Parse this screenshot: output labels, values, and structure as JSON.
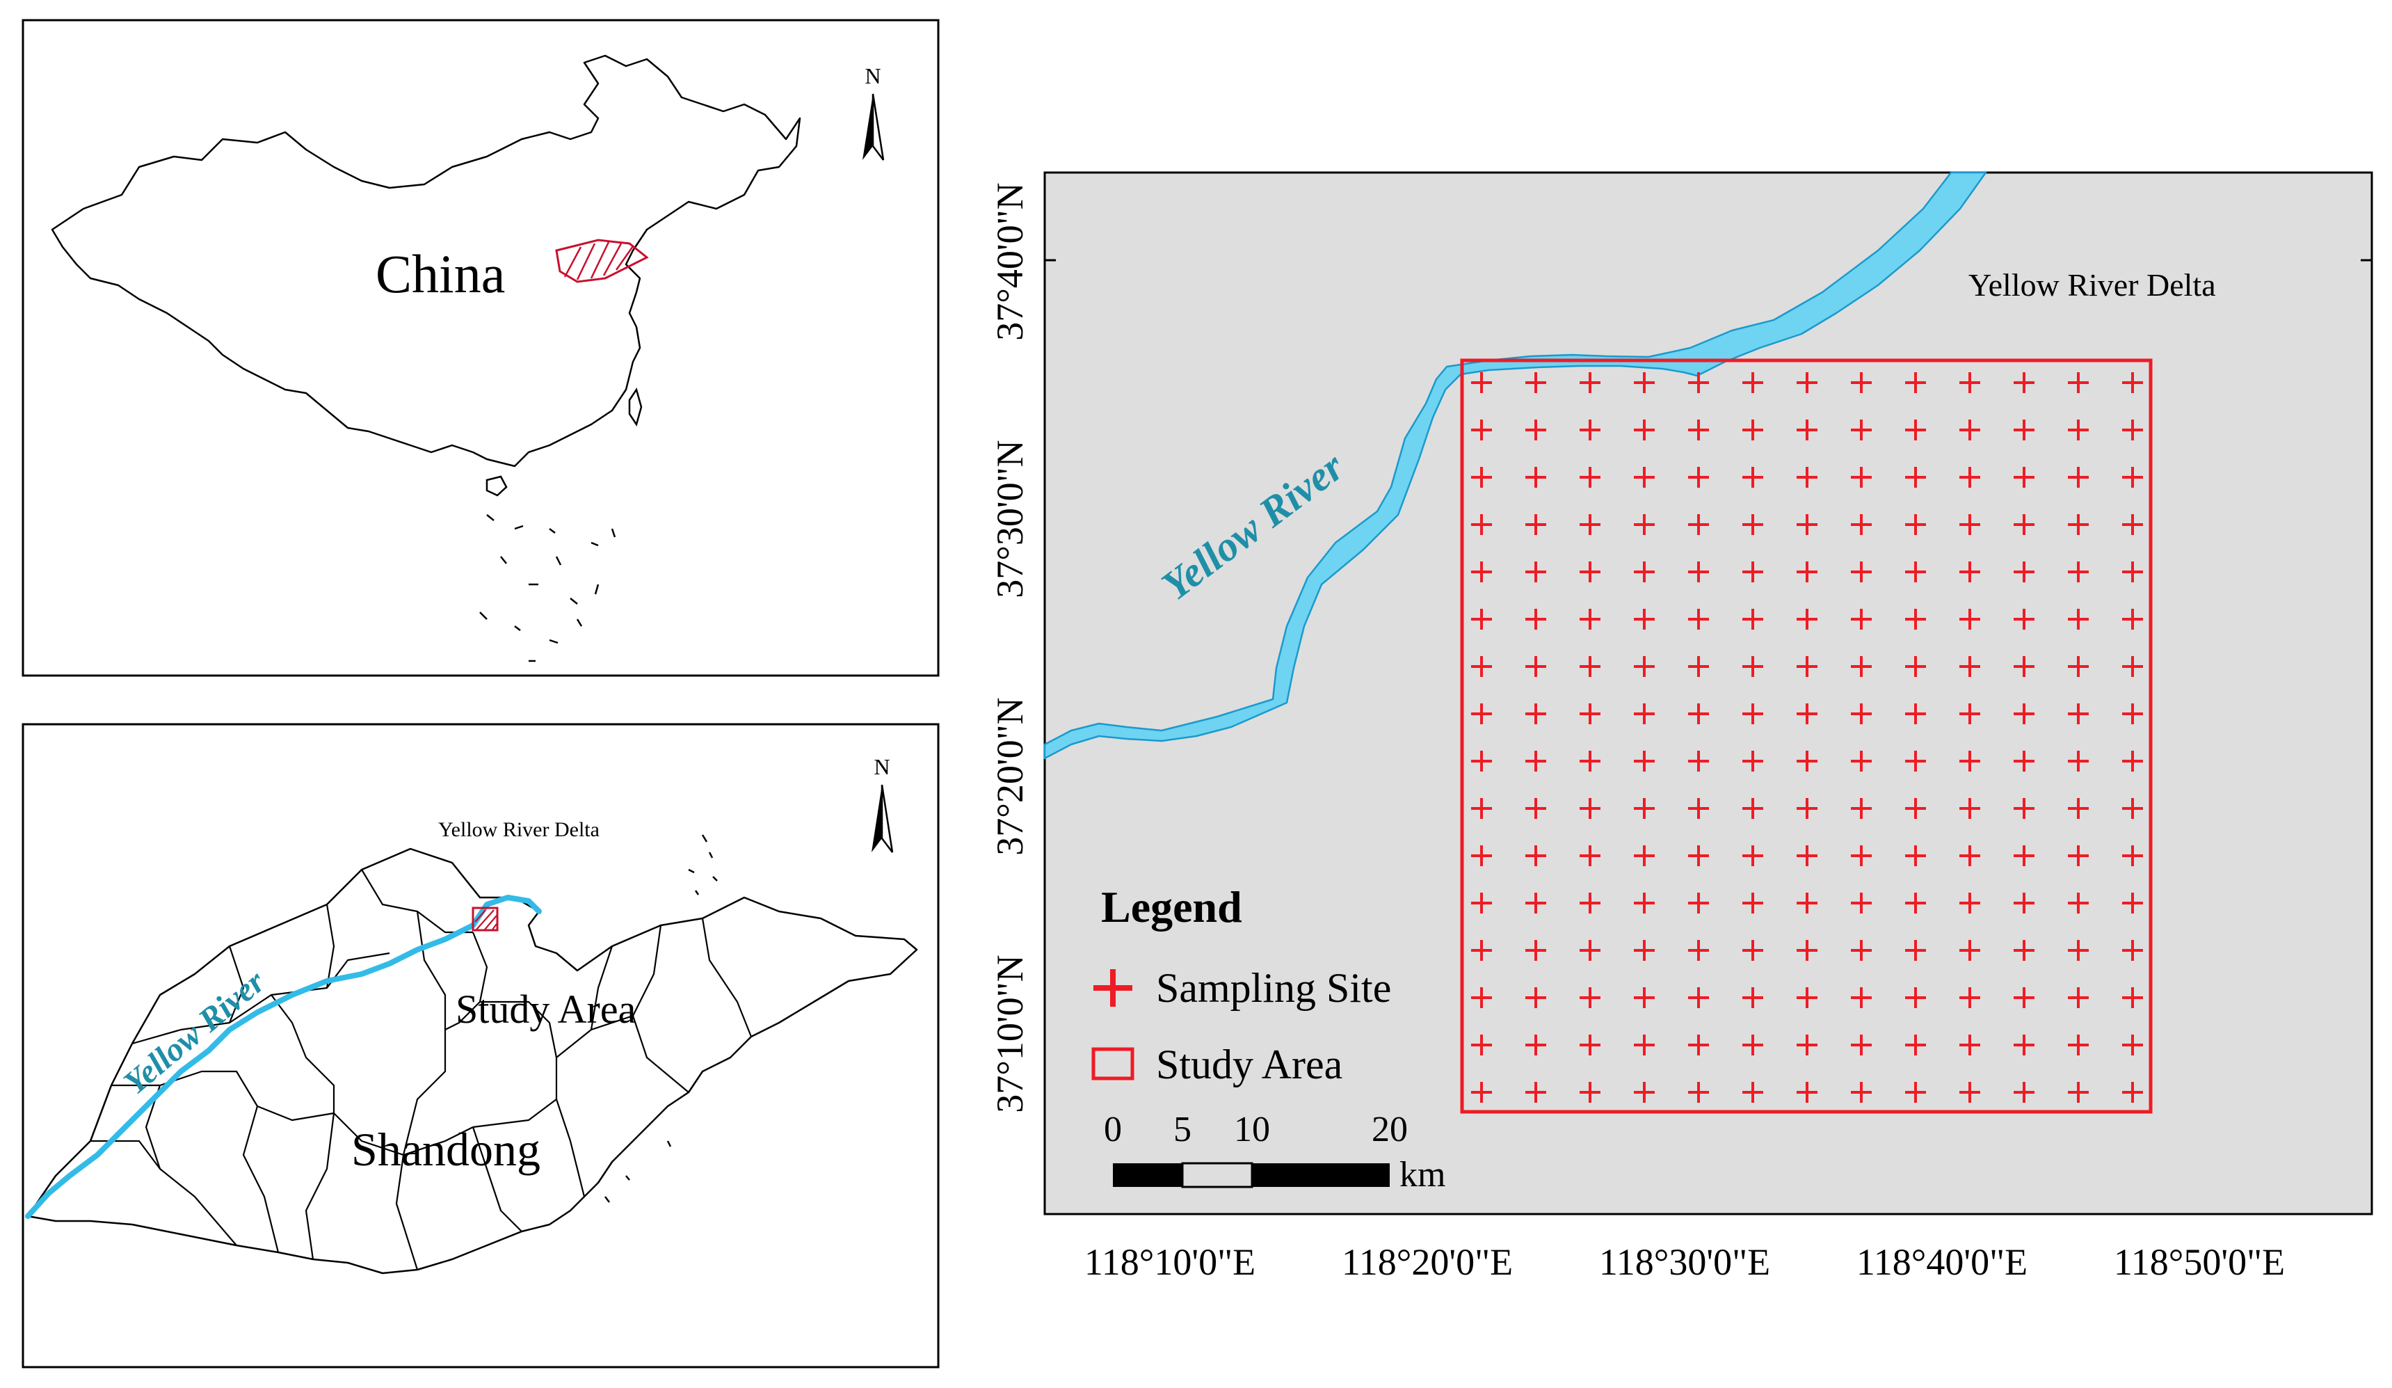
{
  "panels": {
    "china": {
      "country_label": "China",
      "north_letter": "N"
    },
    "shandong": {
      "delta_label": "Yellow River Delta",
      "river_label": "Yellow River",
      "study_area_label": "Study Area",
      "province_label": "Shandong",
      "north_letter": "N"
    },
    "detail": {
      "delta_label": "Yellow River Delta",
      "river_label": "Yellow River",
      "lat_ticks": [
        "37°40'0\"N",
        "37°30'0\"N",
        "37°20'0\"N",
        "37°10'0\"N"
      ],
      "lon_ticks": [
        "118°10'0\"E",
        "118°20'0\"E",
        "118°30'0\"E",
        "118°40'0\"E",
        "118°50'0\"E"
      ],
      "legend": {
        "title": "Legend",
        "items": [
          {
            "symbol": "cross",
            "label": "Sampling Site"
          },
          {
            "symbol": "box",
            "label": "Study Area"
          }
        ]
      },
      "scale_bar": {
        "labels": [
          "0",
          "5",
          "10",
          "20"
        ],
        "unit": "km"
      },
      "sampling_grid": {
        "rows": 16,
        "cols": 13
      }
    }
  },
  "colors": {
    "river": "#33bbe8",
    "river_label": "#1f8fa8",
    "study_area": "#ee1c25",
    "map_background": "#dedede",
    "outline": "#000000"
  }
}
